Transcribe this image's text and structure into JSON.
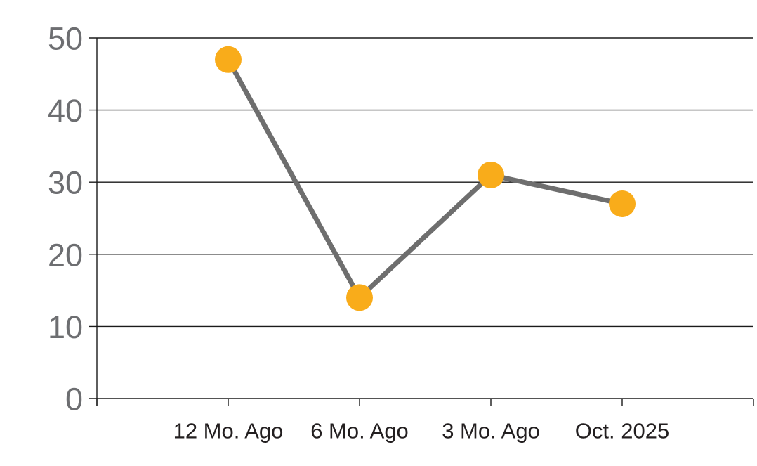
{
  "chart_data": {
    "type": "line",
    "categories": [
      "12 Mo. Ago",
      "6 Mo. Ago",
      "3 Mo. Ago",
      "Oct. 2025"
    ],
    "values": [
      47,
      14,
      31,
      27
    ],
    "series": [
      {
        "name": "value",
        "values": [
          47,
          14,
          31,
          27
        ]
      }
    ],
    "xlabel": "",
    "ylabel": "",
    "ylim": [
      0,
      50
    ],
    "yticks": [
      0,
      10,
      20,
      30,
      40,
      50
    ],
    "grid": true,
    "legend_position": "none",
    "marker_shape": "circle",
    "colors": {
      "marker": "#F9AC1A",
      "line": "#6E6E6E",
      "grid": "#1A1A1A",
      "axis": "#1A1A1A",
      "y_tick_label": "#6D6E71",
      "x_tick_label": "#231F20",
      "background": "#FFFFFF"
    }
  }
}
